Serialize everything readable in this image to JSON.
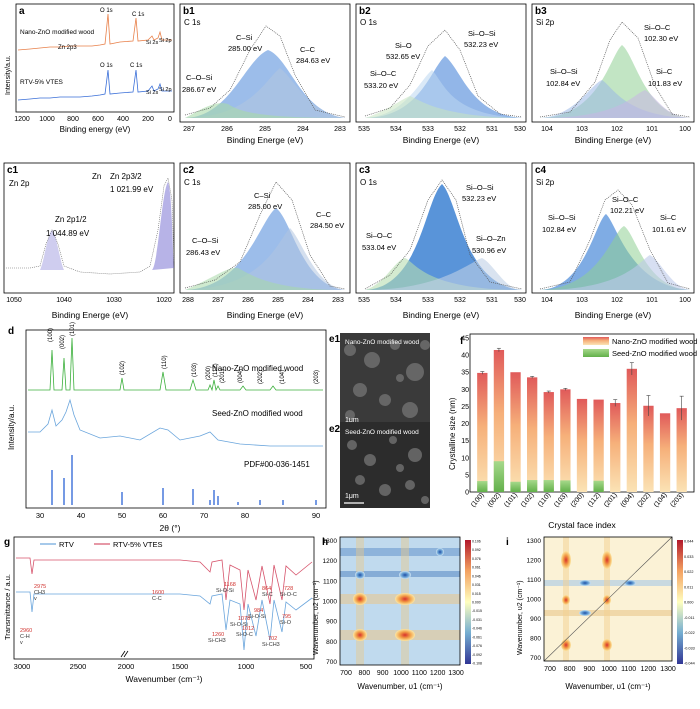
{
  "panels": {
    "a": {
      "letter": "a",
      "xlabel": "Binding energy (eV)",
      "ylabel": "Intensity/a.u.",
      "xticks": [
        "1200",
        "1000",
        "800",
        "600",
        "400",
        "200",
        "0"
      ],
      "top_label": "Nano-ZnO modified wood",
      "bottom_label": "RTV-5% VTES",
      "peaks_top": [
        "O 1s",
        "C 1s",
        "Zn 2p3",
        "Si 2s",
        "Si 2p"
      ],
      "peaks_bottom": [
        "O 1s",
        "C 1s",
        "Si 2s",
        "Si 2p"
      ],
      "colors": {
        "top": "#e8804a",
        "bottom": "#3a6fd8"
      }
    },
    "b1": {
      "letter": "b1",
      "element": "C 1s",
      "xlabel": "Binding Energe (eV)",
      "xticks": [
        "287",
        "286",
        "285",
        "284",
        "283"
      ],
      "labels": [
        {
          "name": "C–Si",
          "value": "285.00 eV"
        },
        {
          "name": "C–C",
          "value": "284.63 eV"
        },
        {
          "name": "C–O–Si",
          "value": "286.67 eV"
        }
      ]
    },
    "b2": {
      "letter": "b2",
      "element": "O 1s",
      "xlabel": "Binding Energe (eV)",
      "xticks": [
        "535",
        "534",
        "533",
        "532",
        "531",
        "530"
      ],
      "labels": [
        {
          "name": "Si–O",
          "value": "532.65 eV"
        },
        {
          "name": "Si–O–Si",
          "value": "532.23 eV"
        },
        {
          "name": "Si–O–C",
          "value": "533.20 eV"
        }
      ]
    },
    "b3": {
      "letter": "b3",
      "element": "Si 2p",
      "xlabel": "Binding Energe (eV)",
      "xticks": [
        "104",
        "103",
        "102",
        "101",
        "100"
      ],
      "labels": [
        {
          "name": "Si–O–C",
          "value": "102.30 eV"
        },
        {
          "name": "Si–O–Si",
          "value": "102.84 eV"
        },
        {
          "name": "Si–C",
          "value": "101.83 eV"
        }
      ]
    },
    "c1": {
      "letter": "c1",
      "element": "Zn 2p",
      "xlabel": "Binding Energe (eV)",
      "xticks": [
        "1050",
        "1040",
        "1030",
        "1020"
      ],
      "labels": [
        {
          "name": "Zn 2p3/2",
          "value": "1 021.99 eV"
        },
        {
          "name": "Zn 2p1/2",
          "value": "1 044.89 eV"
        }
      ],
      "zn_prefix": "Zn"
    },
    "c2": {
      "letter": "c2",
      "element": "C 1s",
      "xlabel": "Binding Energe (eV)",
      "xticks": [
        "288",
        "287",
        "286",
        "285",
        "284",
        "283"
      ],
      "labels": [
        {
          "name": "C–Si",
          "value": "285.00 eV"
        },
        {
          "name": "C–C",
          "value": "284.50 eV"
        },
        {
          "name": "C–O–Si",
          "value": "286.43 eV"
        }
      ]
    },
    "c3": {
      "letter": "c3",
      "element": "O 1s",
      "xlabel": "Binding Energe (eV)",
      "xticks": [
        "535",
        "534",
        "533",
        "532",
        "531",
        "530"
      ],
      "labels": [
        {
          "name": "Si–O–Si",
          "value": "532.23 eV"
        },
        {
          "name": "Si–O–C",
          "value": "533.04 eV"
        },
        {
          "name": "Si–O–Zn",
          "value": "530.96 eV"
        }
      ]
    },
    "c4": {
      "letter": "c4",
      "element": "Si 2p",
      "xlabel": "Binding Energe (eV)",
      "xticks": [
        "104",
        "103",
        "102",
        "101",
        "100"
      ],
      "labels": [
        {
          "name": "Si–O–C",
          "value": "102.21 eV"
        },
        {
          "name": "Si–O–Si",
          "value": "102.84 eV"
        },
        {
          "name": "Si–C",
          "value": "101.61 eV"
        }
      ]
    },
    "d": {
      "letter": "d",
      "xlabel": "2θ (°)",
      "ylabel": "Intensity/a.u.",
      "xticks": [
        "30",
        "40",
        "50",
        "60",
        "70",
        "80",
        "90"
      ],
      "labels": [
        "Nano-ZnO modified wood",
        "Seed-ZnO modified wood",
        "PDF#00-036-1451"
      ],
      "hkl": [
        "(100)",
        "(002)",
        "(101)",
        "(102)",
        "(110)",
        "(103)",
        "(200)",
        "(112)",
        "(201)",
        "(004)",
        "(202)",
        "(104)",
        "(203)"
      ]
    },
    "e1": {
      "letter": "e1",
      "caption": "Nano-ZnO modified wood",
      "scale": "1μm"
    },
    "e2": {
      "letter": "e2",
      "caption": "Seed-ZnO modified wood",
      "scale": "1μm"
    },
    "f": {
      "letter": "f",
      "xlabel": "Crystal face index",
      "ylabel": "Crystalline size (nm)",
      "yticks": [
        "0",
        "5",
        "10",
        "15",
        "20",
        "25",
        "30",
        "35",
        "40",
        "45"
      ],
      "legend": [
        "Nano-ZnO modified wood",
        "Seed-ZnO modified wood"
      ]
    },
    "g": {
      "letter": "g",
      "xlabel": "Wavenumber (cm⁻¹)",
      "ylabel": "Transmittance / a.u.",
      "legend": [
        "RTV",
        "RTV-5% VTES"
      ],
      "xticks": [
        "3000",
        "2500",
        "2000",
        "1500",
        "1000",
        "500"
      ],
      "annotations": [
        "2975",
        "CH3",
        "v",
        "2960",
        "C-H",
        "v",
        "1600",
        "C-C",
        "1168",
        "Si-O-Si",
        "1260",
        "Si-CH3",
        "1078",
        "Si-O-Si",
        "1012",
        "Si-O-C",
        "864",
        "Si-C",
        "728",
        "Si-O-C",
        "795",
        "Si-O",
        "702",
        "Si-CH3",
        "984",
        "Si-O-Si"
      ]
    },
    "h": {
      "letter": "h",
      "xlabel": "Wavenumber, υ1 (cm⁻¹)",
      "ylabel": "Wavenumber, υ2 (cm⁻¹)",
      "xticks": [
        "700",
        "800",
        "900",
        "1000",
        "1100",
        "1200",
        "1300"
      ],
      "yticks": [
        "700",
        "800",
        "900",
        "1000",
        "1100",
        "1200",
        "1300"
      ],
      "colorbar": [
        "0.106",
        "0.092",
        "0.076",
        "0.061",
        "0.046",
        "0.031",
        "0.015",
        "0.000",
        "-0.015",
        "-0.031",
        "-0.046",
        "-0.061",
        "-0.076",
        "-0.092",
        "-0.108"
      ]
    },
    "i": {
      "letter": "i",
      "xlabel": "Wavenumber, υ1 (cm⁻¹)",
      "ylabel": "Wavenumber, υ2 (cm⁻¹)",
      "xticks": [
        "700",
        "800",
        "900",
        "1000",
        "1100",
        "1200",
        "1300"
      ],
      "yticks": [
        "700",
        "800",
        "900",
        "1000",
        "1100",
        "1200",
        "1300"
      ],
      "colorbar": [
        "0.044",
        "0.033",
        "0.022",
        "0.011",
        "0.000",
        "-0.011",
        "-0.022",
        "-0.033",
        "-0.044"
      ]
    }
  },
  "chart_data": [
    {
      "type": "bar",
      "panel": "f",
      "title": "",
      "xlabel": "Crystal face index",
      "ylabel": "Crystalline size (nm)",
      "ylim": [
        0,
        45
      ],
      "categories": [
        "(100)",
        "(002)",
        "(101)",
        "(102)",
        "(110)",
        "(103)",
        "(200)",
        "(112)",
        "(201)",
        "(004)",
        "(202)",
        "(104)",
        "(203)"
      ],
      "series": [
        {
          "name": "Nano-ZnO modified wood",
          "values": [
            34.8,
            41.5,
            35,
            33.5,
            29.2,
            30,
            27.2,
            27,
            26,
            36,
            25.2,
            23,
            24.5
          ],
          "errors": [
            0.4,
            0.5,
            0,
            0.3,
            0.3,
            0.3,
            0,
            0,
            1,
            1.8,
            3,
            0,
            3.5
          ]
        },
        {
          "name": "Seed-ZnO modified wood",
          "values": [
            3.2,
            9,
            3,
            3.5,
            3.5,
            3.4,
            0,
            3.3,
            0,
            0,
            0,
            0,
            0
          ]
        }
      ],
      "legend_position": "top-right"
    }
  ]
}
